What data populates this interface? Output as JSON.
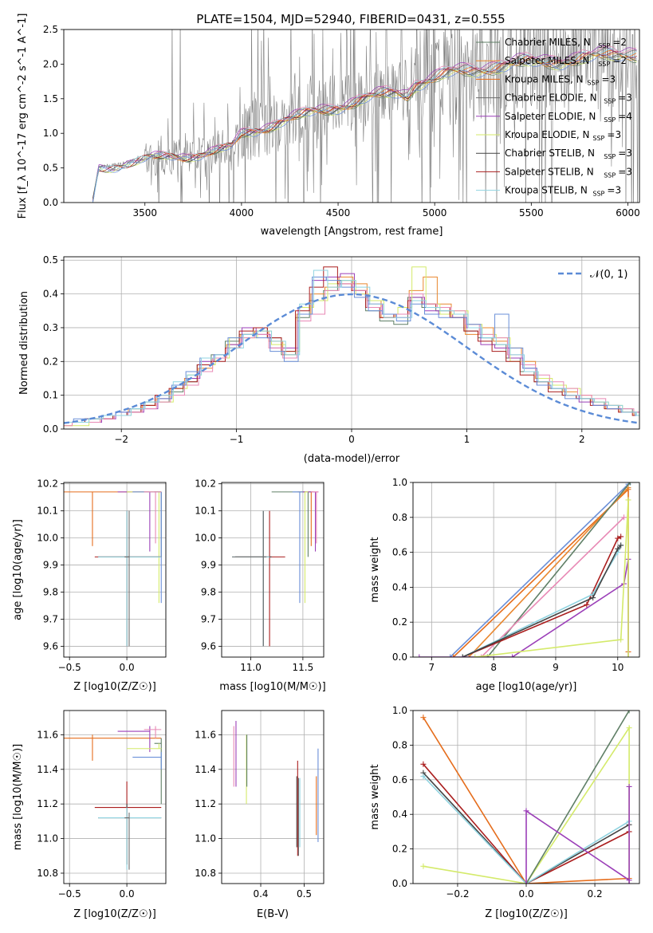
{
  "figure_title": "PLATE=1504, MJD=52940, FIBERID=0431, z=0.555",
  "colors": {
    "Chabrier MILES": "#5f7f66",
    "Salpeter MILES": "#e9872f",
    "Kroupa MILES": "#e56d1c",
    "Chabrier ELODIE": "#6b6b6b",
    "Salpeter ELODIE": "#9b3fb8",
    "Kroupa ELODIE": "#d4ea6a",
    "Chabrier STELIB": "#444444",
    "Salpeter STELIB": "#aa1e1e",
    "Kroupa STELIB": "#8fd3e0",
    "pink": "#e889b5",
    "blue": "#6a8fd8",
    "spectrum": "#808080",
    "gauss": "#5b8bd6"
  },
  "chart_data": [
    {
      "id": "spectrum",
      "type": "line",
      "title": "PLATE=1504, MJD=52940, FIBERID=0431, z=0.555",
      "xlabel": "wavelength [Angstrom, rest frame]",
      "ylabel": "Flux [f_λ 10^-17 erg cm^-2 s^-1 A^-1]",
      "xlim": [
        3080,
        6060
      ],
      "ylim": [
        0,
        2.5
      ],
      "xticks": [
        3500,
        4000,
        4500,
        5000,
        5500,
        6000
      ],
      "yticks": [
        0.0,
        0.5,
        1.0,
        1.5,
        2.0,
        2.5
      ],
      "grid": false,
      "legend_position": "top-right",
      "legend": [
        {
          "name": "Chabrier MILES",
          "nssp": "2"
        },
        {
          "name": "Salpeter MILES",
          "nssp": "2"
        },
        {
          "name": "Kroupa MILES",
          "nssp": "3"
        },
        {
          "name": "Chabrier ELODIE",
          "nssp": "3"
        },
        {
          "name": "Salpeter ELODIE",
          "nssp": "4"
        },
        {
          "name": "Kroupa ELODIE",
          "nssp": "3"
        },
        {
          "name": "Chabrier STELIB",
          "nssp": "3"
        },
        {
          "name": "Salpeter STELIB",
          "nssp": "3"
        },
        {
          "name": "Kroupa STELIB",
          "nssp": "3"
        }
      ],
      "continuum": {
        "x": [
          3230,
          3260,
          3350,
          3500,
          3650,
          3800,
          3900,
          3950,
          4000,
          4100,
          4200,
          4300,
          4400,
          4500,
          4600,
          4700,
          4800,
          4860,
          4900,
          5000,
          5100,
          5200,
          5300,
          5400,
          5500,
          5600,
          5700,
          5800,
          5900,
          6000
        ],
        "y": [
          0.0,
          0.5,
          0.55,
          0.62,
          0.68,
          0.72,
          0.76,
          0.8,
          1.0,
          1.1,
          1.18,
          1.25,
          1.35,
          1.42,
          1.48,
          1.55,
          1.62,
          1.6,
          1.75,
          1.82,
          1.9,
          1.95,
          2.0,
          2.02,
          2.05,
          2.08,
          2.1,
          2.12,
          2.15,
          2.2
        ]
      }
    },
    {
      "id": "residuals",
      "type": "line",
      "xlabel": "(data-model)/error",
      "ylabel": "Normed distribution",
      "xlim": [
        -2.5,
        2.5
      ],
      "ylim": [
        0,
        0.51
      ],
      "xticks": [
        -2,
        -1,
        0,
        1,
        2
      ],
      "yticks": [
        0.0,
        0.1,
        0.2,
        0.3,
        0.4,
        0.5
      ],
      "grid": true,
      "legend": "𝒩(0, 1)",
      "legend_position": "top-right"
    },
    {
      "id": "age-vs-Z",
      "type": "scatter",
      "xlabel": "Z [log10(Z/Z☉)]",
      "ylabel": "age [log10(age/yr)]",
      "xlim": [
        -0.55,
        0.34
      ],
      "ylim": [
        9.56,
        10.205
      ],
      "xticks": [
        -0.5,
        0.0
      ],
      "yticks": [
        9.6,
        9.7,
        9.8,
        9.9,
        10.0,
        10.1,
        10.2
      ],
      "grid": true
    },
    {
      "id": "age-vs-mass",
      "type": "scatter",
      "xlabel": "mass [log10(M/M☉)]",
      "ylabel": "",
      "xlim": [
        10.72,
        11.7
      ],
      "ylim": [
        9.56,
        10.205
      ],
      "xticks": [
        11.0,
        11.5
      ],
      "yticks": [
        9.6,
        9.7,
        9.8,
        9.9,
        10.0,
        10.1,
        10.2
      ],
      "grid": true
    },
    {
      "id": "massweight-vs-age",
      "type": "line",
      "xlabel": "age [log10(age/yr)]",
      "ylabel": "mass weight",
      "xlim": [
        6.7,
        10.35
      ],
      "ylim": [
        0,
        1.0
      ],
      "xticks": [
        7,
        8,
        9,
        10
      ],
      "yticks": [
        0.0,
        0.2,
        0.4,
        0.6,
        0.8,
        1.0
      ],
      "grid": true
    },
    {
      "id": "mass-vs-Z",
      "type": "scatter",
      "xlabel": "Z [log10(Z/Z☉)]",
      "ylabel": "mass [log10(M/M☉)]",
      "xlim": [
        -0.55,
        0.34
      ],
      "ylim": [
        10.74,
        11.74
      ],
      "xticks": [
        -0.5,
        0.0
      ],
      "yticks": [
        10.8,
        11.0,
        11.2,
        11.4,
        11.6
      ],
      "grid": true
    },
    {
      "id": "mass-vs-EBV",
      "type": "scatter",
      "xlabel": "E(B-V)",
      "ylabel": "",
      "xlim": [
        0.31,
        0.545
      ],
      "ylim": [
        10.74,
        11.74
      ],
      "xticks": [
        0.4,
        0.5
      ],
      "yticks": [
        10.8,
        11.0,
        11.2,
        11.4,
        11.6
      ],
      "grid": true
    },
    {
      "id": "massweight-vs-Z",
      "type": "line",
      "xlabel": "Z [log10(Z/Z☉)]",
      "ylabel": "mass weight",
      "xlim": [
        -0.33,
        0.33
      ],
      "ylim": [
        0,
        1.0
      ],
      "xticks": [
        -0.2,
        0.0,
        0.2
      ],
      "yticks": [
        0.0,
        0.2,
        0.4,
        0.6,
        0.8,
        1.0
      ],
      "grid": true
    }
  ],
  "hist_series": [
    {
      "color": "#5f7f66",
      "values": [
        0.02,
        0.02,
        0.03,
        0.03,
        0.04,
        0.05,
        0.07,
        0.08,
        0.11,
        0.14,
        0.19,
        0.22,
        0.26,
        0.28,
        0.3,
        0.27,
        0.22,
        0.33,
        0.38,
        0.41,
        0.44,
        0.41,
        0.35,
        0.32,
        0.31,
        0.39,
        0.36,
        0.35,
        0.34,
        0.29,
        0.27,
        0.25,
        0.21,
        0.17,
        0.14,
        0.12,
        0.1,
        0.09,
        0.08,
        0.07,
        0.06,
        0.05
      ]
    },
    {
      "color": "#e9872f",
      "values": [
        0.01,
        0.02,
        0.02,
        0.03,
        0.04,
        0.06,
        0.07,
        0.09,
        0.12,
        0.15,
        0.18,
        0.21,
        0.25,
        0.28,
        0.29,
        0.26,
        0.22,
        0.34,
        0.4,
        0.42,
        0.45,
        0.43,
        0.38,
        0.33,
        0.34,
        0.41,
        0.45,
        0.37,
        0.33,
        0.28,
        0.3,
        0.26,
        0.24,
        0.2,
        0.15,
        0.12,
        0.11,
        0.1,
        0.08,
        0.06,
        0.05,
        0.04
      ]
    },
    {
      "color": "#9b3fb8",
      "values": [
        0.02,
        0.02,
        0.02,
        0.03,
        0.05,
        0.05,
        0.06,
        0.09,
        0.13,
        0.15,
        0.2,
        0.22,
        0.25,
        0.3,
        0.28,
        0.24,
        0.24,
        0.36,
        0.44,
        0.45,
        0.46,
        0.4,
        0.37,
        0.34,
        0.33,
        0.39,
        0.35,
        0.34,
        0.33,
        0.3,
        0.25,
        0.24,
        0.21,
        0.18,
        0.13,
        0.12,
        0.1,
        0.08,
        0.07,
        0.06,
        0.05,
        0.05
      ]
    },
    {
      "color": "#d4ea6a",
      "values": [
        0.01,
        0.01,
        0.03,
        0.04,
        0.04,
        0.06,
        0.08,
        0.08,
        0.12,
        0.16,
        0.19,
        0.21,
        0.27,
        0.27,
        0.29,
        0.25,
        0.23,
        0.36,
        0.38,
        0.43,
        0.44,
        0.4,
        0.38,
        0.34,
        0.36,
        0.48,
        0.37,
        0.34,
        0.35,
        0.31,
        0.28,
        0.27,
        0.2,
        0.17,
        0.15,
        0.13,
        0.12,
        0.09,
        0.08,
        0.07,
        0.05,
        0.04
      ]
    },
    {
      "color": "#aa1e1e",
      "values": [
        0.02,
        0.02,
        0.03,
        0.03,
        0.04,
        0.05,
        0.07,
        0.1,
        0.12,
        0.14,
        0.19,
        0.2,
        0.24,
        0.29,
        0.3,
        0.27,
        0.23,
        0.35,
        0.42,
        0.48,
        0.43,
        0.41,
        0.36,
        0.33,
        0.34,
        0.38,
        0.37,
        0.36,
        0.33,
        0.29,
        0.26,
        0.23,
        0.2,
        0.16,
        0.14,
        0.11,
        0.1,
        0.09,
        0.07,
        0.06,
        0.05,
        0.04
      ]
    },
    {
      "color": "#e889b5",
      "values": [
        0.01,
        0.02,
        0.02,
        0.03,
        0.04,
        0.05,
        0.06,
        0.08,
        0.1,
        0.13,
        0.17,
        0.21,
        0.24,
        0.27,
        0.28,
        0.24,
        0.21,
        0.32,
        0.34,
        0.41,
        0.43,
        0.41,
        0.36,
        0.34,
        0.34,
        0.4,
        0.37,
        0.36,
        0.35,
        0.31,
        0.28,
        0.27,
        0.22,
        0.19,
        0.16,
        0.14,
        0.12,
        0.1,
        0.09,
        0.07,
        0.06,
        0.05
      ]
    },
    {
      "color": "#6a8fd8",
      "values": [
        0.02,
        0.03,
        0.03,
        0.04,
        0.05,
        0.06,
        0.08,
        0.09,
        0.13,
        0.17,
        0.21,
        0.22,
        0.27,
        0.28,
        0.27,
        0.23,
        0.2,
        0.34,
        0.45,
        0.44,
        0.42,
        0.39,
        0.35,
        0.34,
        0.32,
        0.37,
        0.34,
        0.33,
        0.33,
        0.31,
        0.27,
        0.34,
        0.24,
        0.18,
        0.13,
        0.12,
        0.09,
        0.09,
        0.07,
        0.06,
        0.05,
        0.04
      ]
    },
    {
      "color": "#8fd3e0",
      "values": [
        0.02,
        0.02,
        0.03,
        0.04,
        0.04,
        0.06,
        0.08,
        0.1,
        0.14,
        0.16,
        0.21,
        0.22,
        0.24,
        0.28,
        0.29,
        0.26,
        0.22,
        0.37,
        0.47,
        0.42,
        0.44,
        0.42,
        0.37,
        0.33,
        0.33,
        0.38,
        0.36,
        0.35,
        0.34,
        0.3,
        0.27,
        0.25,
        0.22,
        0.17,
        0.14,
        0.12,
        0.1,
        0.09,
        0.08,
        0.07,
        0.05,
        0.04
      ]
    }
  ],
  "age_mass_points": [
    {
      "color": "#e56d1c",
      "Z": -0.3,
      "Zlo": -0.55,
      "Zhi": 0.3,
      "age": 10.17,
      "agelo": 9.97,
      "agehi": 10.17,
      "mass": 11.58,
      "masslo": 11.45,
      "masshi": 11.6
    },
    {
      "color": "#5f7f66",
      "Z": 0.3,
      "Zlo": 0.24,
      "Zhi": 0.3,
      "age": 10.17,
      "agelo": 9.93,
      "agehi": 10.17,
      "mass": 11.55,
      "masslo": 11.2,
      "masshi": 11.58
    },
    {
      "color": "#9b3fb8",
      "Z": 0.2,
      "Zlo": -0.08,
      "Zhi": 0.2,
      "age": 10.17,
      "agelo": 9.95,
      "agehi": 10.17,
      "mass": 11.62,
      "masslo": 11.5,
      "masshi": 11.65
    },
    {
      "color": "#d4ea6a",
      "Z": 0.28,
      "Zlo": 0.0,
      "Zhi": 0.3,
      "age": 10.17,
      "agelo": 9.76,
      "agehi": 10.17,
      "mass": 11.52,
      "masslo": 11.52,
      "masshi": 11.55
    },
    {
      "color": "#6a8fd8",
      "Z": 0.3,
      "Zlo": 0.05,
      "Zhi": 0.3,
      "age": 10.17,
      "agelo": 9.76,
      "agehi": 10.17,
      "mass": 11.47,
      "masslo": 11.4,
      "masshi": 11.5
    },
    {
      "color": "#e889b5",
      "Z": 0.25,
      "Zlo": 0.15,
      "Zhi": 0.3,
      "age": 10.17,
      "agelo": 9.98,
      "agehi": 10.17,
      "mass": 11.63,
      "masslo": 11.58,
      "masshi": 11.65
    },
    {
      "color": "#aa1e1e",
      "Z": 0.0,
      "Zlo": -0.28,
      "Zhi": 0.3,
      "age": 9.93,
      "agelo": 9.6,
      "agehi": 10.1,
      "mass": 11.18,
      "masslo": 10.85,
      "masshi": 11.33
    },
    {
      "color": "#444444",
      "Z": 0.0,
      "Zlo": -0.25,
      "Zhi": 0.3,
      "age": 9.93,
      "agelo": 9.6,
      "agehi": 10.1,
      "mass": 11.12,
      "masslo": 10.85,
      "masshi": 11.2
    },
    {
      "color": "#8fd3e0",
      "Z": 0.0,
      "Zlo": -0.25,
      "Zhi": 0.3,
      "age": 9.93,
      "agelo": 9.6,
      "agehi": 10.1,
      "mass": 11.12,
      "masslo": 10.82,
      "masshi": 11.18
    },
    {
      "color": "#6b6b6b",
      "Z": 0.02,
      "Zlo": -0.02,
      "Zhi": 0.02,
      "age": 9.93,
      "agelo": 9.6,
      "agehi": 10.1,
      "mass": 11.12,
      "masslo": 10.82,
      "masshi": 11.15
    }
  ],
  "mass_ebv_points": [
    {
      "color": "#e889b5",
      "ebv": 0.338,
      "mass": 11.45,
      "lo": 11.3,
      "hi": 11.65
    },
    {
      "color": "#9b3fb8",
      "ebv": 0.343,
      "mass": 11.5,
      "lo": 11.3,
      "hi": 11.68
    },
    {
      "color": "#d4ea6a",
      "ebv": 0.367,
      "mass": 11.4,
      "lo": 11.2,
      "hi": 11.6
    },
    {
      "color": "#5f7f66",
      "ebv": 0.368,
      "mass": 11.42,
      "lo": 11.3,
      "hi": 11.6
    },
    {
      "color": "#444444",
      "ebv": 0.483,
      "mass": 11.1,
      "lo": 10.95,
      "hi": 11.36
    },
    {
      "color": "#aa1e1e",
      "ebv": 0.485,
      "mass": 11.2,
      "lo": 10.9,
      "hi": 11.45
    },
    {
      "color": "#6b6b6b",
      "ebv": 0.487,
      "mass": 11.1,
      "lo": 10.9,
      "hi": 11.35
    },
    {
      "color": "#8fd3e0",
      "ebv": 0.49,
      "mass": 11.1,
      "lo": 10.95,
      "hi": 11.35
    },
    {
      "color": "#e56d1c",
      "ebv": 0.528,
      "mass": 11.2,
      "lo": 11.02,
      "hi": 11.36
    },
    {
      "color": "#6a8fd8",
      "ebv": 0.532,
      "mass": 11.25,
      "lo": 10.98,
      "hi": 11.52
    }
  ],
  "mw_age_lines": [
    {
      "color": "#6a8fd8",
      "x": [
        7.3,
        10.17
      ],
      "y": [
        0.0,
        0.99
      ]
    },
    {
      "color": "#e56d1c",
      "x": [
        7.35,
        10.17,
        10.17
      ],
      "y": [
        0.0,
        0.96,
        0.03
      ]
    },
    {
      "color": "#e9872f",
      "x": [
        7.6,
        10.17
      ],
      "y": [
        0.0,
        0.97
      ]
    },
    {
      "color": "#5f7f66",
      "x": [
        7.9,
        10.2
      ],
      "y": [
        0.0,
        1.0
      ]
    },
    {
      "color": "#e889b5",
      "x": [
        7.8,
        10.1
      ],
      "y": [
        0.0,
        0.8
      ]
    },
    {
      "color": "#aa1e1e",
      "x": [
        7.5,
        9.5,
        10.0,
        10.05
      ],
      "y": [
        0.0,
        0.3,
        0.68,
        0.69
      ]
    },
    {
      "color": "#8fd3e0",
      "x": [
        7.5,
        9.6,
        10.0,
        10.05
      ],
      "y": [
        0.0,
        0.36,
        0.6,
        0.64
      ]
    },
    {
      "color": "#444444",
      "x": [
        7.5,
        9.6,
        10.0,
        10.05
      ],
      "y": [
        0.0,
        0.34,
        0.62,
        0.64
      ]
    },
    {
      "color": "#9b3fb8",
      "x": [
        6.8,
        8.3,
        10.1,
        10.17,
        10.17
      ],
      "y": [
        0.0,
        0.0,
        0.42,
        0.56,
        0.0
      ]
    },
    {
      "color": "#d4ea6a",
      "x": [
        7.7,
        10.05,
        10.17,
        10.17
      ],
      "y": [
        0.0,
        0.1,
        0.9,
        0.0
      ]
    }
  ],
  "mw_Z_lines": [
    {
      "color": "#e56d1c",
      "x": [
        -0.3,
        0.0,
        0.3
      ],
      "y": [
        0.96,
        0.0,
        0.03
      ]
    },
    {
      "color": "#aa1e1e",
      "x": [
        -0.3,
        0.0,
        0.3
      ],
      "y": [
        0.69,
        0.0,
        0.3
      ]
    },
    {
      "color": "#444444",
      "x": [
        -0.3,
        0.0,
        0.3
      ],
      "y": [
        0.64,
        0.0,
        0.34
      ]
    },
    {
      "color": "#8fd3e0",
      "x": [
        -0.3,
        0.0,
        0.3
      ],
      "y": [
        0.62,
        0.0,
        0.36
      ]
    },
    {
      "color": "#d4ea6a",
      "x": [
        -0.3,
        0.0,
        0.3,
        0.3
      ],
      "y": [
        0.1,
        0.0,
        0.9,
        0.0
      ]
    },
    {
      "color": "#5f7f66",
      "x": [
        0.0,
        0.3
      ],
      "y": [
        0.0,
        1.0
      ]
    },
    {
      "color": "#9b3fb8",
      "x": [
        0.0,
        0.0,
        0.3,
        0.3,
        0.3
      ],
      "y": [
        0.0,
        0.42,
        0.02,
        0.56,
        0.0
      ]
    }
  ]
}
